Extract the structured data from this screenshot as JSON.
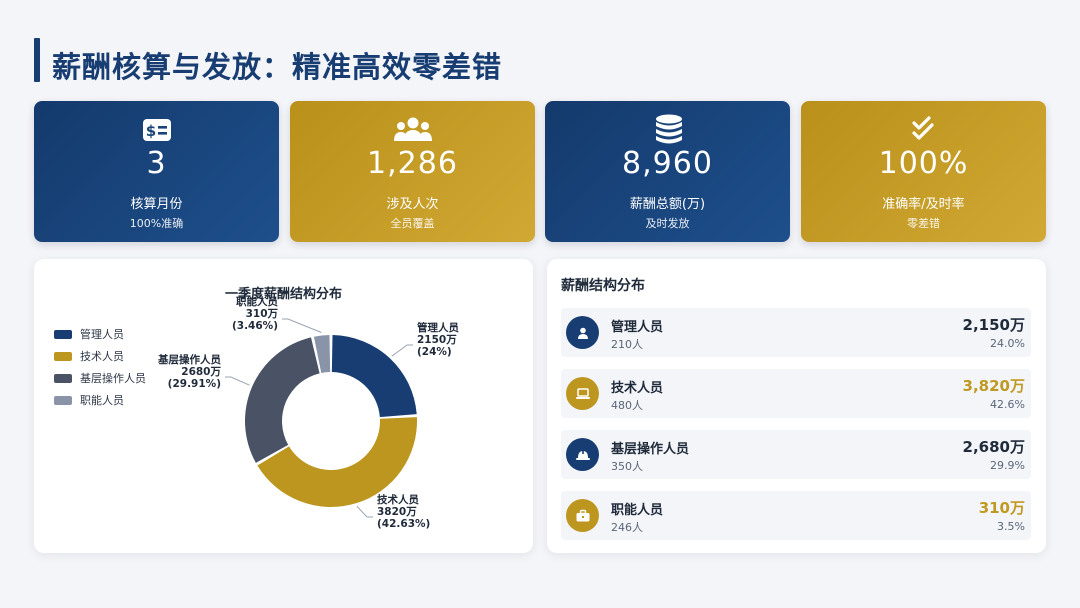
{
  "page": {
    "title": "薪酬核算与发放：精准高效零差错"
  },
  "cards": [
    {
      "icon": "dollar-list-icon",
      "value": "3",
      "label": "核算月份",
      "sub": "100%准确"
    },
    {
      "icon": "people-group-icon",
      "value": "1,286",
      "label": "涉及人次",
      "sub": "全员覆盖"
    },
    {
      "icon": "coin-stack-icon",
      "value": "8,960",
      "label": "薪酬总额(万)",
      "sub": "及时发放"
    },
    {
      "icon": "double-check-icon",
      "value": "100%",
      "label": "准确率/及时率",
      "sub": "零差错"
    }
  ],
  "chart": {
    "title": "一季度薪酬结构分布"
  },
  "chart_data": {
    "type": "pie",
    "title": "一季度薪酬结构分布",
    "donut": true,
    "legend_position": "left",
    "categories": [
      "管理人员",
      "技术人员",
      "基层操作人员",
      "职能人员"
    ],
    "values": [
      2150,
      3820,
      2680,
      310
    ],
    "unit": "万",
    "percents": [
      "24%",
      "42.63%",
      "29.91%",
      "3.46%"
    ],
    "colors": [
      "#173d72",
      "#bd961f",
      "#4a5366",
      "#8a94a8"
    ],
    "data_labels": [
      {
        "name": "管理人员",
        "value": "2150万",
        "pct": "(24%)"
      },
      {
        "name": "技术人员",
        "value": "3820万",
        "pct": "(42.63%)"
      },
      {
        "name": "基层操作人员",
        "value": "2680万",
        "pct": "(29.91%)"
      },
      {
        "name": "职能人员",
        "value": "310万",
        "pct": "(3.46%)"
      }
    ]
  },
  "structure": {
    "title": "薪酬结构分布",
    "rows": [
      {
        "icon": "manager-icon",
        "name": "管理人员",
        "count": "210人",
        "amount": "2,150万",
        "pct": "24.0%",
        "color": "blue"
      },
      {
        "icon": "laptop-icon",
        "name": "技术人员",
        "count": "480人",
        "amount": "3,820万",
        "pct": "42.6%",
        "color": "gold"
      },
      {
        "icon": "hardhat-icon",
        "name": "基层操作人员",
        "count": "350人",
        "amount": "2,680万",
        "pct": "29.9%",
        "color": "blue"
      },
      {
        "icon": "briefcase-icon",
        "name": "职能人员",
        "count": "246人",
        "amount": "310万",
        "pct": "3.5%",
        "color": "gold"
      }
    ]
  }
}
